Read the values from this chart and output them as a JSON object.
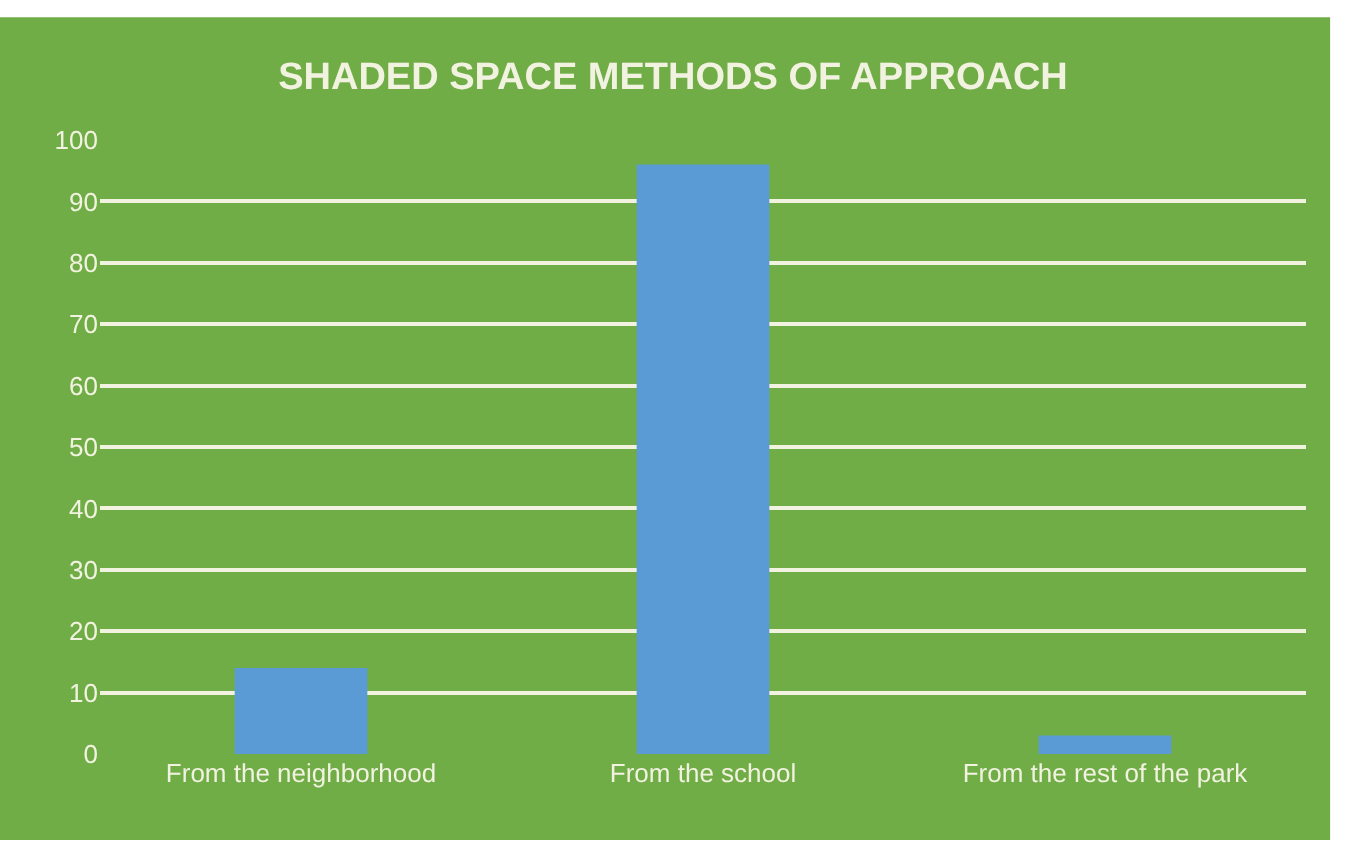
{
  "chart_data": {
    "type": "bar",
    "title": "SHADED SPACE METHODS OF APPROACH",
    "categories": [
      "From the neighborhood",
      "From the school",
      "From the rest of the park"
    ],
    "values": [
      14,
      96,
      3
    ],
    "color": "#5b9bd5",
    "ylim": [
      0,
      100
    ],
    "yticks": [
      0,
      10,
      20,
      30,
      40,
      50,
      60,
      70,
      80,
      90,
      100
    ],
    "grid": "y",
    "legend": false
  }
}
